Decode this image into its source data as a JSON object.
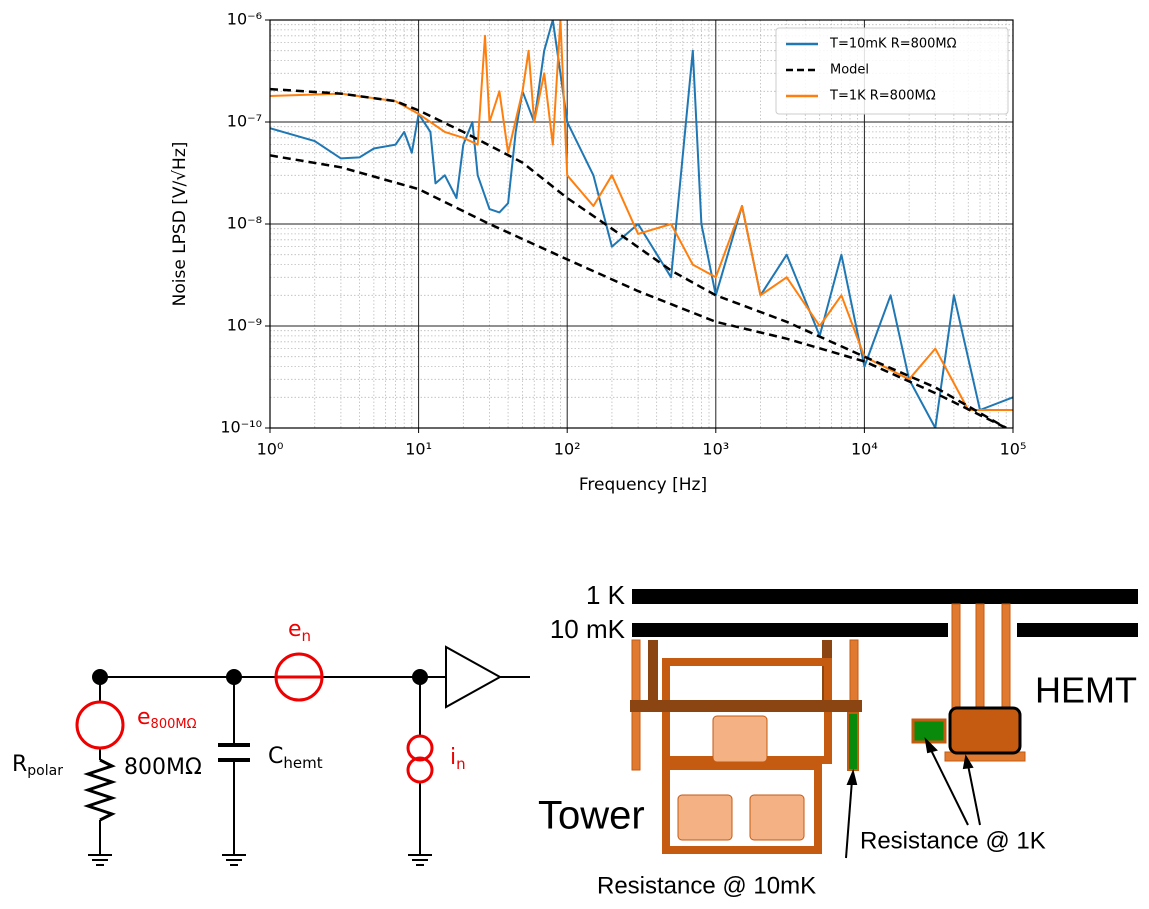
{
  "chart_data": {
    "type": "line",
    "xscale": "log",
    "yscale": "log",
    "xlabel": "Frequency [Hz]",
    "ylabel": "Noise LPSD [V/√Hz]",
    "xlim": [
      1,
      100000
    ],
    "ylim": [
      1e-10,
      1e-06
    ],
    "xticks": [
      {
        "value": 1,
        "label": "10⁰"
      },
      {
        "value": 10,
        "label": "10¹"
      },
      {
        "value": 100,
        "label": "10²"
      },
      {
        "value": 1000,
        "label": "10³"
      },
      {
        "value": 10000,
        "label": "10⁴"
      },
      {
        "value": 100000,
        "label": "10⁵"
      }
    ],
    "yticks": [
      {
        "value": 1e-10,
        "label": "10⁻¹⁰"
      },
      {
        "value": 1e-09,
        "label": "10⁻⁹"
      },
      {
        "value": 1e-08,
        "label": "10⁻⁸"
      },
      {
        "value": 1e-07,
        "label": "10⁻⁷"
      },
      {
        "value": 1e-06,
        "label": "10⁻⁶"
      }
    ],
    "grid": true,
    "minor_grid": true,
    "legend": "upper right",
    "series": [
      {
        "name": "T=10mK R=800MΩ",
        "color": "#1f77b4",
        "linestyle": "solid",
        "x": [
          1,
          2,
          3,
          4,
          5,
          7,
          8,
          9,
          10,
          12,
          13,
          15,
          18,
          20,
          23,
          25,
          30,
          35,
          40,
          45,
          50,
          60,
          70,
          80,
          90,
          100,
          150,
          200,
          300,
          500,
          700,
          800,
          1000,
          1500,
          2000,
          3000,
          5000,
          7000,
          10000,
          15000,
          20000,
          30000,
          40000,
          60000,
          100000
        ],
        "values": [
          8.7e-08,
          6.5e-08,
          4.4e-08,
          4.5e-08,
          5.5e-08,
          6e-08,
          8e-08,
          5e-08,
          1.2e-07,
          8e-08,
          2.5e-08,
          3e-08,
          1.8e-08,
          6e-08,
          1e-07,
          3e-08,
          1.4e-08,
          1.3e-08,
          1.6e-08,
          8e-08,
          2e-07,
          1e-07,
          5e-07,
          1e-06,
          3e-07,
          1e-07,
          3e-08,
          6e-09,
          1e-08,
          3e-09,
          5e-07,
          1e-08,
          2e-09,
          1.5e-08,
          2e-09,
          5e-09,
          8e-10,
          5e-09,
          4e-10,
          2e-09,
          3e-10,
          1e-10,
          2e-09,
          1.5e-10,
          2e-10
        ]
      },
      {
        "name": "Model",
        "color": "#000000",
        "linestyle": "dashed",
        "x": [
          1,
          3,
          7,
          10,
          20,
          50,
          100,
          200,
          500,
          1000,
          3000,
          10000,
          30000,
          90000
        ],
        "values": [
          2.1e-07,
          1.9e-07,
          1.6e-07,
          1.3e-07,
          8e-08,
          4e-08,
          1.8e-08,
          9e-09,
          3.5e-09,
          2e-09,
          1.1e-09,
          5e-10,
          2.5e-10,
          1e-10
        ]
      },
      {
        "name": "T=1K R=800MΩ",
        "color": "#ff7f0e",
        "linestyle": "solid",
        "x": [
          1,
          3,
          7,
          10,
          15,
          20,
          25,
          28,
          30,
          35,
          40,
          50,
          55,
          60,
          70,
          80,
          90,
          100,
          150,
          200,
          300,
          500,
          700,
          1000,
          1500,
          2000,
          3000,
          5000,
          7000,
          10000,
          20000,
          30000,
          50000,
          100000
        ],
        "values": [
          1.8e-07,
          1.9e-07,
          1.6e-07,
          1.2e-07,
          8e-08,
          7e-08,
          6e-08,
          7e-07,
          1e-07,
          2e-07,
          5e-08,
          2e-07,
          5e-07,
          1e-07,
          3e-07,
          6e-08,
          1e-06,
          3e-08,
          1.5e-08,
          3e-08,
          8e-09,
          1e-08,
          4e-09,
          3e-09,
          1.5e-08,
          2e-09,
          3e-09,
          1e-09,
          2e-09,
          5e-10,
          3e-10,
          6e-10,
          1.5e-10,
          1.5e-10
        ]
      },
      {
        "color": "#000000",
        "linestyle": "dashed",
        "x": [
          1,
          3,
          10,
          30,
          100,
          300,
          1000,
          3000,
          10000,
          30000,
          90000
        ],
        "values": [
          4.7e-08,
          3.6e-08,
          2.2e-08,
          1e-08,
          4.5e-09,
          2.2e-09,
          1.1e-09,
          7.5e-10,
          4.5e-10,
          2.2e-10,
          1e-10
        ]
      }
    ]
  },
  "circuit": {
    "en": {
      "main": "e",
      "sub": "n"
    },
    "e800": {
      "main": "e",
      "sub": "800MΩ"
    },
    "chemt": {
      "main": "C",
      "sub": "hemt"
    },
    "in": {
      "main": "i",
      "sub": "n"
    },
    "rpolar": {
      "main": "R",
      "sub": "polar"
    },
    "resistance": "800MΩ"
  },
  "setup": {
    "stage_1k": "1 K",
    "stage_10mk": "10 mK",
    "hemt": "HEMT",
    "tower": "Tower",
    "res_1k": "Resistance @ 1K",
    "res_10mk": "Resistance @ 10mK"
  }
}
